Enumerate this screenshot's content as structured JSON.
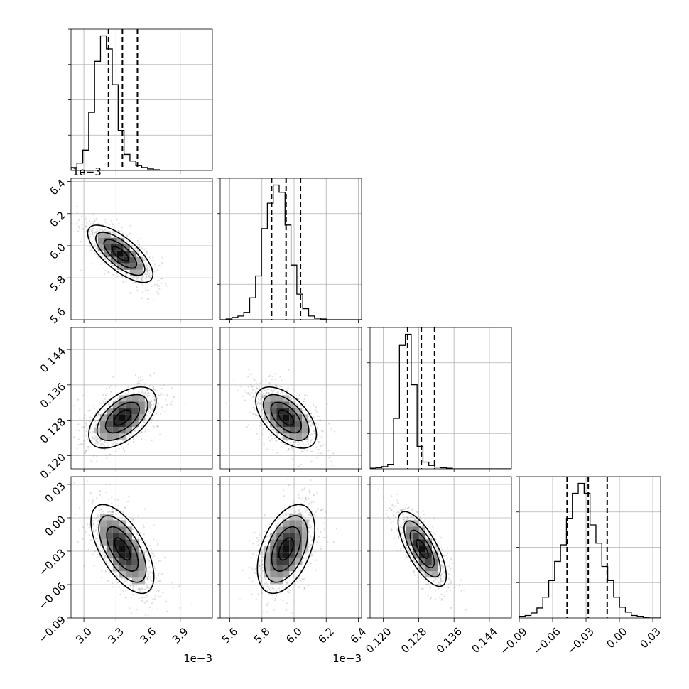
{
  "chart_data": {
    "type": "corner",
    "grid": true,
    "parameters": [
      {
        "range": [
          2.88,
          4.2
        ],
        "ticks": [
          3.0,
          3.3,
          3.6,
          3.9
        ],
        "tick_labels": [
          "3.0",
          "3.3",
          "3.6",
          "3.9"
        ],
        "offset_text": "1e−3",
        "quantiles": [
          3.23,
          3.36,
          3.5
        ],
        "hist_bin_width": 0.055,
        "hist_counts": [
          4,
          10,
          28,
          80,
          150,
          185,
          167,
          118,
          55,
          22,
          13,
          7,
          4,
          2,
          1,
          0,
          0,
          0,
          0,
          0,
          0,
          0,
          0,
          0
        ]
      },
      {
        "range": [
          5.54,
          6.42
        ],
        "ticks": [
          5.6,
          5.8,
          6.0,
          6.2,
          6.4
        ],
        "tick_labels": [
          "5.6",
          "5.8",
          "6.0",
          "6.2",
          "6.4"
        ],
        "offset_text": "1e−3",
        "quantiles": [
          5.86,
          5.95,
          6.04
        ],
        "hist_bin_width": 0.0367,
        "hist_counts": [
          0,
          1,
          3,
          5,
          10,
          30,
          60,
          125,
          160,
          185,
          175,
          130,
          75,
          35,
          15,
          5,
          2,
          1,
          0,
          0,
          0,
          0,
          0,
          0
        ]
      },
      {
        "range": [
          0.117,
          0.149
        ],
        "ticks": [
          0.12,
          0.128,
          0.136,
          0.144
        ],
        "tick_labels": [
          "0.120",
          "0.128",
          "0.136",
          "0.144"
        ],
        "quantiles": [
          0.1255,
          0.1286,
          0.1316
        ],
        "hist_bin_width": 0.00133,
        "hist_counts": [
          1,
          2,
          4,
          8,
          90,
          220,
          240,
          150,
          40,
          12,
          6,
          3,
          2,
          1,
          0,
          0,
          0,
          0,
          0,
          0,
          0,
          0,
          0,
          0
        ]
      },
      {
        "range": [
          -0.09,
          0.037
        ],
        "ticks": [
          -0.09,
          -0.06,
          -0.03,
          0.0,
          0.03
        ],
        "tick_labels": [
          "−0.09",
          "−0.06",
          "−0.03",
          "0.00",
          "0.03"
        ],
        "quantiles": [
          -0.047,
          -0.028,
          -0.011
        ],
        "hist_bin_width": 0.0053,
        "hist_counts": [
          2,
          3,
          6,
          12,
          25,
          45,
          68,
          88,
          120,
          150,
          162,
          150,
          112,
          90,
          62,
          45,
          25,
          13,
          7,
          3,
          2,
          1,
          0,
          0
        ]
      }
    ],
    "pairs": [
      {
        "x": 0,
        "y": 1,
        "mean": [
          3.34,
          5.95
        ],
        "sd": [
          0.145,
          0.085
        ],
        "rho": -0.72
      },
      {
        "x": 0,
        "y": 2,
        "mean": [
          3.36,
          0.1286
        ],
        "sd": [
          0.15,
          0.0033
        ],
        "rho": 0.55
      },
      {
        "x": 1,
        "y": 2,
        "mean": [
          5.95,
          0.1286
        ],
        "sd": [
          0.09,
          0.0033
        ],
        "rho": -0.55
      },
      {
        "x": 0,
        "y": 3,
        "mean": [
          3.36,
          -0.028
        ],
        "sd": [
          0.14,
          0.019
        ],
        "rho": -0.62
      },
      {
        "x": 1,
        "y": 3,
        "mean": [
          5.95,
          -0.028
        ],
        "sd": [
          0.085,
          0.019
        ],
        "rho": 0.45
      },
      {
        "x": 2,
        "y": 3,
        "mean": [
          0.1288,
          -0.028
        ],
        "sd": [
          0.0026,
          0.016
        ],
        "rho": -0.72
      }
    ],
    "contour_levels_sigma": [
      0.5,
      1.0,
      1.5,
      2.0
    ]
  }
}
